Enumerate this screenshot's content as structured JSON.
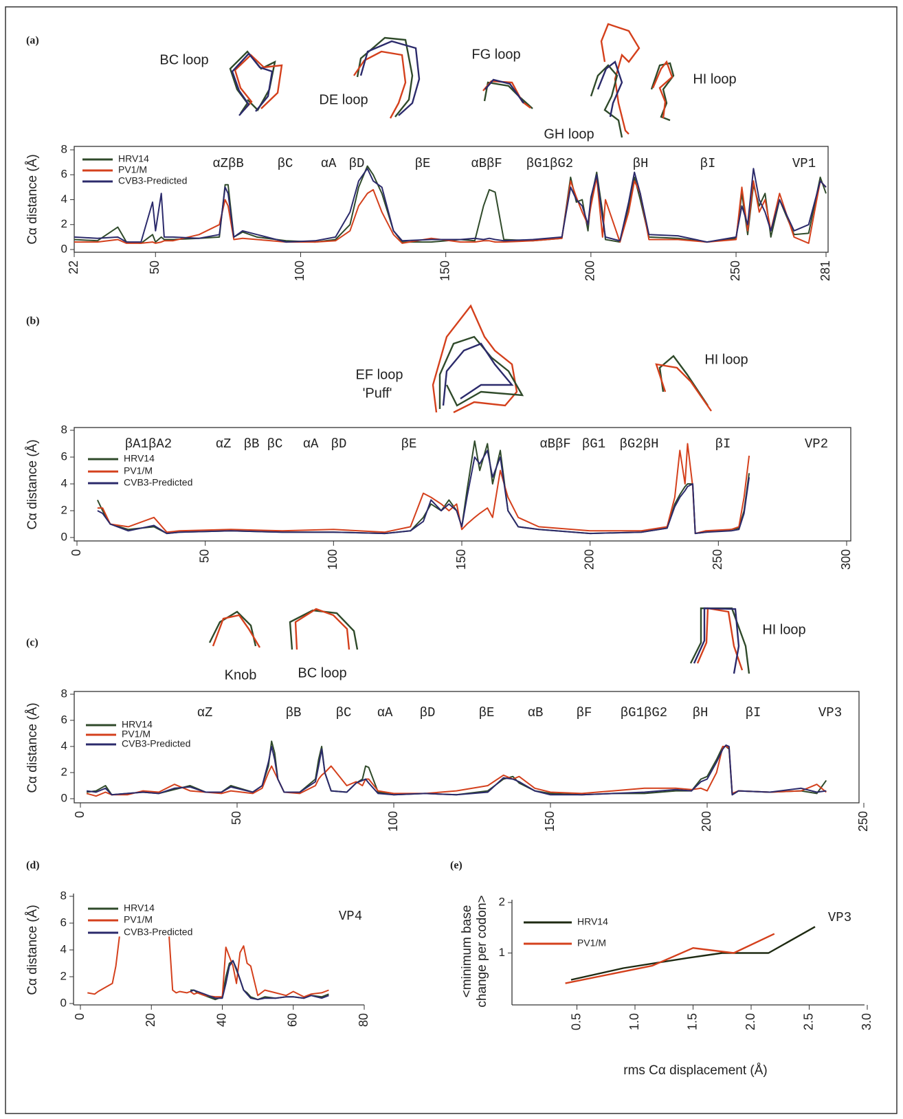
{
  "chart_data": [
    {
      "type": "line",
      "panel_label": "(a)",
      "ylabel": "Cα distance (Å)",
      "structure_labels": [
        "αZβB",
        "βC",
        "αA",
        "βD",
        "βE",
        "αBβF",
        "βG1βG2",
        "βH",
        "βI",
        "VP1"
      ],
      "loop_labels": [
        "BC loop",
        "DE loop",
        "FG loop",
        "GH loop",
        "HI loop"
      ],
      "xlim": [
        22,
        281
      ],
      "xticks": [
        22,
        50,
        100,
        150,
        200,
        250,
        281
      ],
      "ylim": [
        0,
        8
      ],
      "yticks": [
        0,
        2,
        4,
        6,
        8
      ],
      "x": [
        22,
        30,
        37,
        40,
        45,
        49,
        50,
        52,
        53,
        56,
        65,
        72,
        74,
        75,
        77,
        80,
        85,
        95,
        105,
        112,
        117,
        120,
        123,
        125,
        128,
        132,
        135,
        145,
        155,
        160,
        163,
        165,
        167,
        170,
        180,
        190,
        193,
        195,
        197,
        199,
        200,
        202,
        204,
        205,
        210,
        213,
        215,
        217,
        220,
        230,
        240,
        250,
        252,
        254,
        256,
        258,
        260,
        262,
        265,
        270,
        275,
        279,
        281
      ],
      "series": [
        {
          "name": "HRV14",
          "color": "#2f4a2a",
          "values": [
            0.8,
            0.7,
            1.8,
            0.6,
            0.5,
            1.2,
            0.6,
            1.0,
            0.8,
            0.8,
            0.9,
            1.0,
            5.2,
            5.2,
            1.0,
            1.4,
            1.0,
            0.7,
            0.6,
            0.8,
            2.0,
            5.0,
            6.7,
            6.0,
            4.5,
            1.5,
            0.6,
            0.6,
            0.8,
            0.7,
            3.5,
            4.8,
            4.6,
            0.8,
            0.7,
            0.9,
            5.8,
            3.8,
            4.0,
            1.5,
            4.0,
            6.2,
            3.0,
            0.8,
            0.6,
            3.5,
            5.8,
            4.0,
            1.0,
            0.9,
            0.6,
            0.9,
            4.5,
            1.2,
            5.2,
            3.5,
            4.5,
            1.0,
            4.0,
            1.2,
            1.3,
            5.8,
            4.5
          ]
        },
        {
          "name": "PV1/M",
          "color": "#d4401c",
          "values": [
            0.6,
            0.6,
            0.8,
            0.5,
            0.5,
            0.6,
            0.5,
            0.6,
            0.7,
            0.7,
            1.2,
            2.0,
            4.0,
            3.5,
            0.8,
            0.9,
            0.8,
            0.6,
            0.6,
            0.7,
            1.5,
            3.5,
            4.5,
            4.8,
            3.0,
            1.2,
            0.5,
            0.9,
            0.6,
            0.6,
            0.7,
            0.7,
            0.6,
            0.6,
            0.7,
            0.9,
            5.5,
            4.2,
            3.0,
            2.0,
            3.5,
            5.8,
            1.0,
            4.0,
            0.6,
            3.0,
            5.5,
            4.5,
            0.8,
            0.8,
            0.6,
            0.8,
            5.0,
            1.5,
            5.5,
            3.0,
            4.0,
            1.5,
            4.5,
            1.0,
            0.5,
            5.5,
            5.0
          ]
        },
        {
          "name": "CVB3-Predicted",
          "color": "#2b2a6b",
          "values": [
            1.0,
            0.9,
            1.0,
            0.6,
            0.6,
            3.8,
            1.5,
            4.5,
            1.0,
            1.0,
            0.9,
            1.2,
            5.0,
            4.5,
            1.0,
            1.5,
            1.2,
            0.6,
            0.7,
            1.0,
            3.0,
            5.5,
            6.5,
            5.5,
            5.0,
            1.5,
            0.7,
            0.8,
            0.8,
            0.9,
            0.8,
            0.9,
            0.8,
            0.7,
            0.8,
            1.0,
            5.0,
            4.0,
            3.5,
            2.0,
            4.2,
            6.0,
            2.5,
            1.0,
            0.7,
            3.8,
            6.2,
            4.5,
            1.2,
            1.1,
            0.6,
            1.0,
            3.5,
            2.0,
            6.5,
            4.0,
            3.0,
            1.5,
            4.0,
            1.5,
            2.0,
            5.5,
            5.0
          ]
        }
      ]
    },
    {
      "type": "line",
      "panel_label": "(b)",
      "ylabel": "Cα distance (Å)",
      "structure_labels": [
        "βA1βA2",
        "αZ",
        "βB",
        "βC",
        "αA",
        "βD",
        "βE",
        "αBβF",
        "βG1",
        "βG2βH",
        "βI",
        "VP2"
      ],
      "loop_labels": [
        "EF loop",
        "'Puff'",
        "HI loop"
      ],
      "xlim": [
        0,
        300
      ],
      "xticks": [
        0,
        50,
        100,
        150,
        200,
        250,
        300
      ],
      "ylim": [
        0,
        8
      ],
      "yticks": [
        0,
        2,
        4,
        6,
        8
      ],
      "x": [
        8,
        10,
        13,
        20,
        30,
        35,
        40,
        60,
        80,
        100,
        120,
        130,
        135,
        138,
        142,
        145,
        148,
        150,
        152,
        155,
        157,
        160,
        162,
        165,
        168,
        172,
        180,
        200,
        220,
        230,
        233,
        235,
        237,
        238,
        240,
        241,
        245,
        255,
        258,
        260,
        262
      ],
      "series": [
        {
          "name": "HRV14",
          "color": "#2f4a2a",
          "values": [
            2.8,
            2.0,
            1.0,
            0.6,
            0.8,
            0.3,
            0.4,
            0.5,
            0.4,
            0.4,
            0.3,
            0.5,
            1.5,
            2.5,
            2.0,
            2.8,
            2.0,
            0.8,
            3.5,
            7.2,
            5.0,
            7.0,
            4.0,
            6.5,
            2.0,
            0.8,
            0.6,
            0.3,
            0.4,
            0.7,
            2.5,
            3.2,
            3.8,
            4.0,
            4.0,
            0.3,
            0.4,
            0.6,
            0.7,
            2.0,
            4.8
          ]
        },
        {
          "name": "PV1/M",
          "color": "#d4401c",
          "values": [
            2.2,
            2.2,
            1.0,
            0.8,
            1.5,
            0.4,
            0.5,
            0.6,
            0.5,
            0.6,
            0.4,
            0.8,
            3.3,
            3.0,
            2.5,
            2.0,
            2.5,
            0.6,
            1.0,
            1.5,
            1.8,
            2.2,
            1.5,
            5.0,
            3.0,
            1.5,
            0.8,
            0.5,
            0.5,
            0.8,
            3.0,
            6.5,
            4.0,
            7.0,
            3.8,
            0.3,
            0.5,
            0.6,
            0.8,
            3.0,
            6.1
          ]
        },
        {
          "name": "CVB3-Predicted",
          "color": "#2b2a6b",
          "values": [
            2.0,
            1.8,
            1.0,
            0.5,
            0.9,
            0.3,
            0.4,
            0.5,
            0.4,
            0.4,
            0.3,
            0.5,
            1.2,
            2.8,
            2.0,
            2.5,
            2.0,
            0.8,
            3.0,
            6.0,
            5.5,
            6.5,
            4.5,
            6.0,
            2.0,
            0.8,
            0.6,
            0.3,
            0.4,
            0.7,
            2.3,
            3.0,
            3.5,
            3.8,
            4.0,
            0.3,
            0.4,
            0.5,
            0.6,
            1.8,
            4.5
          ]
        }
      ]
    },
    {
      "type": "line",
      "panel_label": "(c)",
      "ylabel": "Cα distance (Å)",
      "structure_labels": [
        "αZ",
        "βB",
        "βC",
        "αA",
        "βD",
        "βE",
        "αB",
        "βF",
        "βG1βG2",
        "βH",
        "βI",
        "VP3"
      ],
      "loop_labels": [
        "Knob",
        "BC loop",
        "HI loop"
      ],
      "xlim": [
        0,
        250
      ],
      "xticks": [
        0,
        50,
        100,
        150,
        200,
        250
      ],
      "ylim": [
        0,
        8
      ],
      "yticks": [
        0,
        2,
        4,
        6,
        8
      ],
      "x": [
        2,
        5,
        8,
        10,
        15,
        20,
        25,
        30,
        35,
        40,
        45,
        48,
        55,
        58,
        60,
        61,
        62,
        63,
        65,
        70,
        75,
        76,
        77,
        78,
        80,
        85,
        88,
        90,
        91,
        92,
        95,
        100,
        110,
        120,
        130,
        135,
        138,
        140,
        145,
        150,
        160,
        170,
        180,
        190,
        195,
        198,
        200,
        203,
        205,
        206,
        207,
        208,
        210,
        220,
        230,
        235,
        238
      ],
      "series": [
        {
          "name": "HRV14",
          "color": "#2f4a2a",
          "values": [
            0.5,
            0.6,
            1.0,
            0.3,
            0.4,
            0.5,
            0.4,
            0.7,
            1.0,
            0.5,
            0.5,
            1.0,
            0.5,
            1.0,
            2.5,
            4.4,
            3.5,
            1.5,
            0.5,
            0.5,
            1.5,
            3.0,
            4.0,
            2.0,
            0.6,
            0.5,
            1.2,
            1.5,
            2.5,
            2.4,
            0.5,
            0.3,
            0.4,
            0.3,
            0.6,
            1.5,
            1.7,
            1.2,
            0.6,
            0.4,
            0.3,
            0.4,
            0.4,
            0.6,
            0.6,
            1.5,
            1.7,
            3.0,
            4.0,
            4.0,
            3.8,
            0.3,
            0.6,
            0.5,
            0.6,
            0.4,
            1.4
          ]
        },
        {
          "name": "PV1/M",
          "color": "#d4401c",
          "values": [
            0.4,
            0.2,
            0.5,
            0.3,
            0.3,
            0.6,
            0.5,
            1.1,
            0.6,
            0.5,
            0.4,
            0.6,
            0.4,
            0.8,
            2.0,
            2.5,
            2.0,
            1.5,
            0.5,
            0.4,
            1.0,
            1.5,
            1.8,
            2.0,
            2.5,
            1.0,
            1.3,
            1.0,
            1.5,
            1.5,
            0.6,
            0.4,
            0.4,
            0.6,
            1.0,
            1.8,
            1.5,
            1.7,
            0.8,
            0.5,
            0.4,
            0.6,
            0.8,
            0.8,
            0.7,
            0.8,
            0.6,
            2.0,
            4.0,
            4.0,
            3.9,
            0.4,
            0.6,
            0.5,
            0.6,
            1.1,
            0.5
          ]
        },
        {
          "name": "CVB3-Predicted",
          "color": "#2b2a6b",
          "values": [
            0.6,
            0.5,
            0.8,
            0.3,
            0.4,
            0.5,
            0.4,
            0.8,
            0.9,
            0.5,
            0.5,
            0.9,
            0.5,
            1.0,
            2.8,
            4.0,
            3.0,
            1.5,
            0.5,
            0.5,
            1.3,
            2.5,
            3.8,
            2.0,
            0.6,
            0.5,
            1.2,
            1.4,
            1.5,
            1.2,
            0.4,
            0.3,
            0.4,
            0.3,
            0.5,
            1.6,
            1.5,
            1.3,
            0.6,
            0.3,
            0.3,
            0.4,
            0.5,
            0.7,
            0.6,
            1.3,
            1.5,
            2.8,
            3.8,
            4.1,
            4.0,
            0.3,
            0.6,
            0.5,
            0.8,
            0.5,
            0.6
          ]
        }
      ]
    },
    {
      "type": "line",
      "panel_label": "(d)",
      "ylabel": "Cα distance (Å)",
      "structure_labels": [
        "VP4"
      ],
      "xlim": [
        0,
        80
      ],
      "xticks": [
        0,
        20,
        40,
        60,
        80
      ],
      "ylim": [
        0,
        8
      ],
      "yticks": [
        0,
        2,
        4,
        6,
        8
      ],
      "x": [
        2,
        4,
        5,
        7,
        9,
        10,
        11,
        18,
        25,
        26,
        27,
        28,
        30,
        31,
        32,
        33,
        35,
        38,
        40,
        41,
        42,
        43,
        44,
        45,
        46,
        47,
        48,
        50,
        52,
        55,
        58,
        60,
        63,
        65,
        68,
        70
      ],
      "series": [
        {
          "name": "HRV14",
          "color": "#2f4a2a",
          "values": [
            null,
            null,
            null,
            null,
            null,
            null,
            null,
            null,
            null,
            null,
            null,
            null,
            null,
            1.0,
            1.0,
            0.8,
            0.6,
            0.3,
            0.5,
            2.0,
            3.0,
            3.2,
            2.5,
            1.8,
            1.0,
            0.8,
            0.5,
            0.3,
            0.5,
            0.4,
            0.5,
            0.5,
            0.4,
            0.6,
            0.5,
            0.7
          ]
        },
        {
          "name": "PV1/M",
          "color": "#d4401c",
          "values": [
            0.8,
            0.7,
            0.9,
            1.2,
            1.5,
            2.8,
            5.0,
            null,
            5.0,
            1.0,
            0.8,
            0.9,
            0.8,
            0.9,
            0.7,
            0.8,
            0.6,
            0.5,
            0.5,
            4.2,
            3.5,
            2.8,
            1.5,
            3.8,
            4.3,
            3.0,
            2.8,
            0.6,
            1.0,
            0.8,
            0.6,
            0.9,
            0.5,
            0.7,
            0.8,
            1.0
          ]
        },
        {
          "name": "CVB3-Predicted",
          "color": "#2b2a6b",
          "values": [
            null,
            null,
            null,
            null,
            null,
            null,
            null,
            null,
            null,
            null,
            null,
            null,
            null,
            0.9,
            1.0,
            0.9,
            0.7,
            0.4,
            0.4,
            1.5,
            2.8,
            3.2,
            2.6,
            1.8,
            1.0,
            0.7,
            0.4,
            0.3,
            0.4,
            0.4,
            0.5,
            0.5,
            0.4,
            0.6,
            0.4,
            0.6
          ]
        }
      ]
    },
    {
      "type": "line",
      "panel_label": "(e)",
      "ylabel": [
        "<minimum base",
        "change per codon>"
      ],
      "xlabel": "rms Cα displacement (Å)",
      "structure_labels": [
        "VP3"
      ],
      "xlim": [
        0,
        3.0
      ],
      "xticks": [
        {
          "value": 0.5,
          "label": "0.5"
        },
        {
          "value": 1.0,
          "label": "1.0"
        },
        {
          "value": 1.5,
          "label": "1.5"
        },
        {
          "value": 2.0,
          "label": "2.0"
        },
        {
          "value": 2.5,
          "label": "2.5"
        },
        {
          "value": 3.0,
          "label": "3.0"
        }
      ],
      "ylim": [
        0,
        2
      ],
      "yticks": [
        1,
        2
      ],
      "series": [
        {
          "name": "HRV14",
          "color": "#1e2a12",
          "x": [
            0.45,
            0.9,
            1.45,
            1.75,
            2.15,
            2.55
          ],
          "values": [
            0.47,
            0.7,
            0.9,
            1.0,
            1.0,
            1.52
          ]
        },
        {
          "name": "PV1/M",
          "color": "#d4401c",
          "x": [
            0.4,
            1.15,
            1.5,
            1.85,
            2.2
          ],
          "values": [
            0.4,
            0.75,
            1.1,
            1.0,
            1.38
          ]
        }
      ]
    }
  ]
}
